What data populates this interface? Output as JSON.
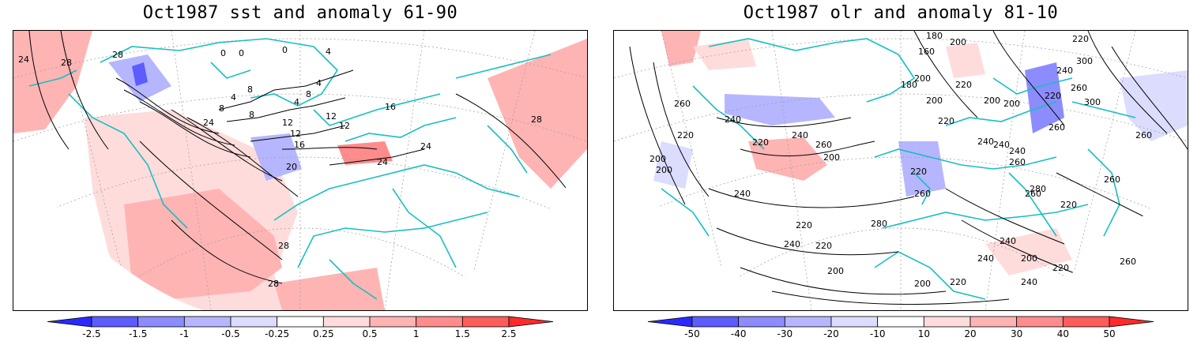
{
  "panels": [
    {
      "title": "Oct1987 sst and anomaly 61-90",
      "contour_labels": [
        "24",
        "28",
        "28",
        "0",
        "0",
        "0",
        "4",
        "4",
        "8",
        "8",
        "4",
        "4",
        "8",
        "8",
        "12",
        "12",
        "12",
        "12",
        "16",
        "16",
        "20",
        "24",
        "24",
        "24",
        "28",
        "28",
        "28"
      ],
      "colorbar": {
        "ticks": [
          "-2.5",
          "-1.5",
          "-1",
          "-0.5",
          "-0.25",
          "0.25",
          "0.5",
          "1",
          "1.5",
          "2.5"
        ],
        "colors": [
          "#2a2aff",
          "#5c5cff",
          "#8c8cff",
          "#b6b6ff",
          "#dcdcff",
          "#ffffff",
          "#ffdcdc",
          "#ffb4b4",
          "#ff8c8c",
          "#ff5c5c",
          "#ff2a2a"
        ]
      }
    },
    {
      "title": "Oct1987 olr and anomaly 81-10",
      "contour_labels": [
        "180",
        "200",
        "160",
        "180",
        "200",
        "200",
        "220",
        "220",
        "200",
        "200",
        "300",
        "220",
        "220",
        "240",
        "260",
        "260",
        "300",
        "240",
        "260",
        "200",
        "240",
        "220",
        "240",
        "220",
        "260",
        "260",
        "240",
        "200",
        "220",
        "260",
        "200",
        "240",
        "260",
        "220",
        "240",
        "280",
        "260",
        "240",
        "220",
        "200",
        "200",
        "220",
        "240",
        "260",
        "280",
        "220",
        "240",
        "200",
        "220",
        "240",
        "260"
      ],
      "colorbar": {
        "ticks": [
          "-50",
          "-40",
          "-30",
          "-20",
          "-10",
          "10",
          "20",
          "30",
          "40",
          "50"
        ],
        "colors": [
          "#2a2aff",
          "#5c5cff",
          "#8c8cff",
          "#b6b6ff",
          "#dcdcff",
          "#ffffff",
          "#ffdcdc",
          "#ffb4b4",
          "#ff8c8c",
          "#ff5c5c",
          "#ff2a2a"
        ]
      }
    }
  ]
}
